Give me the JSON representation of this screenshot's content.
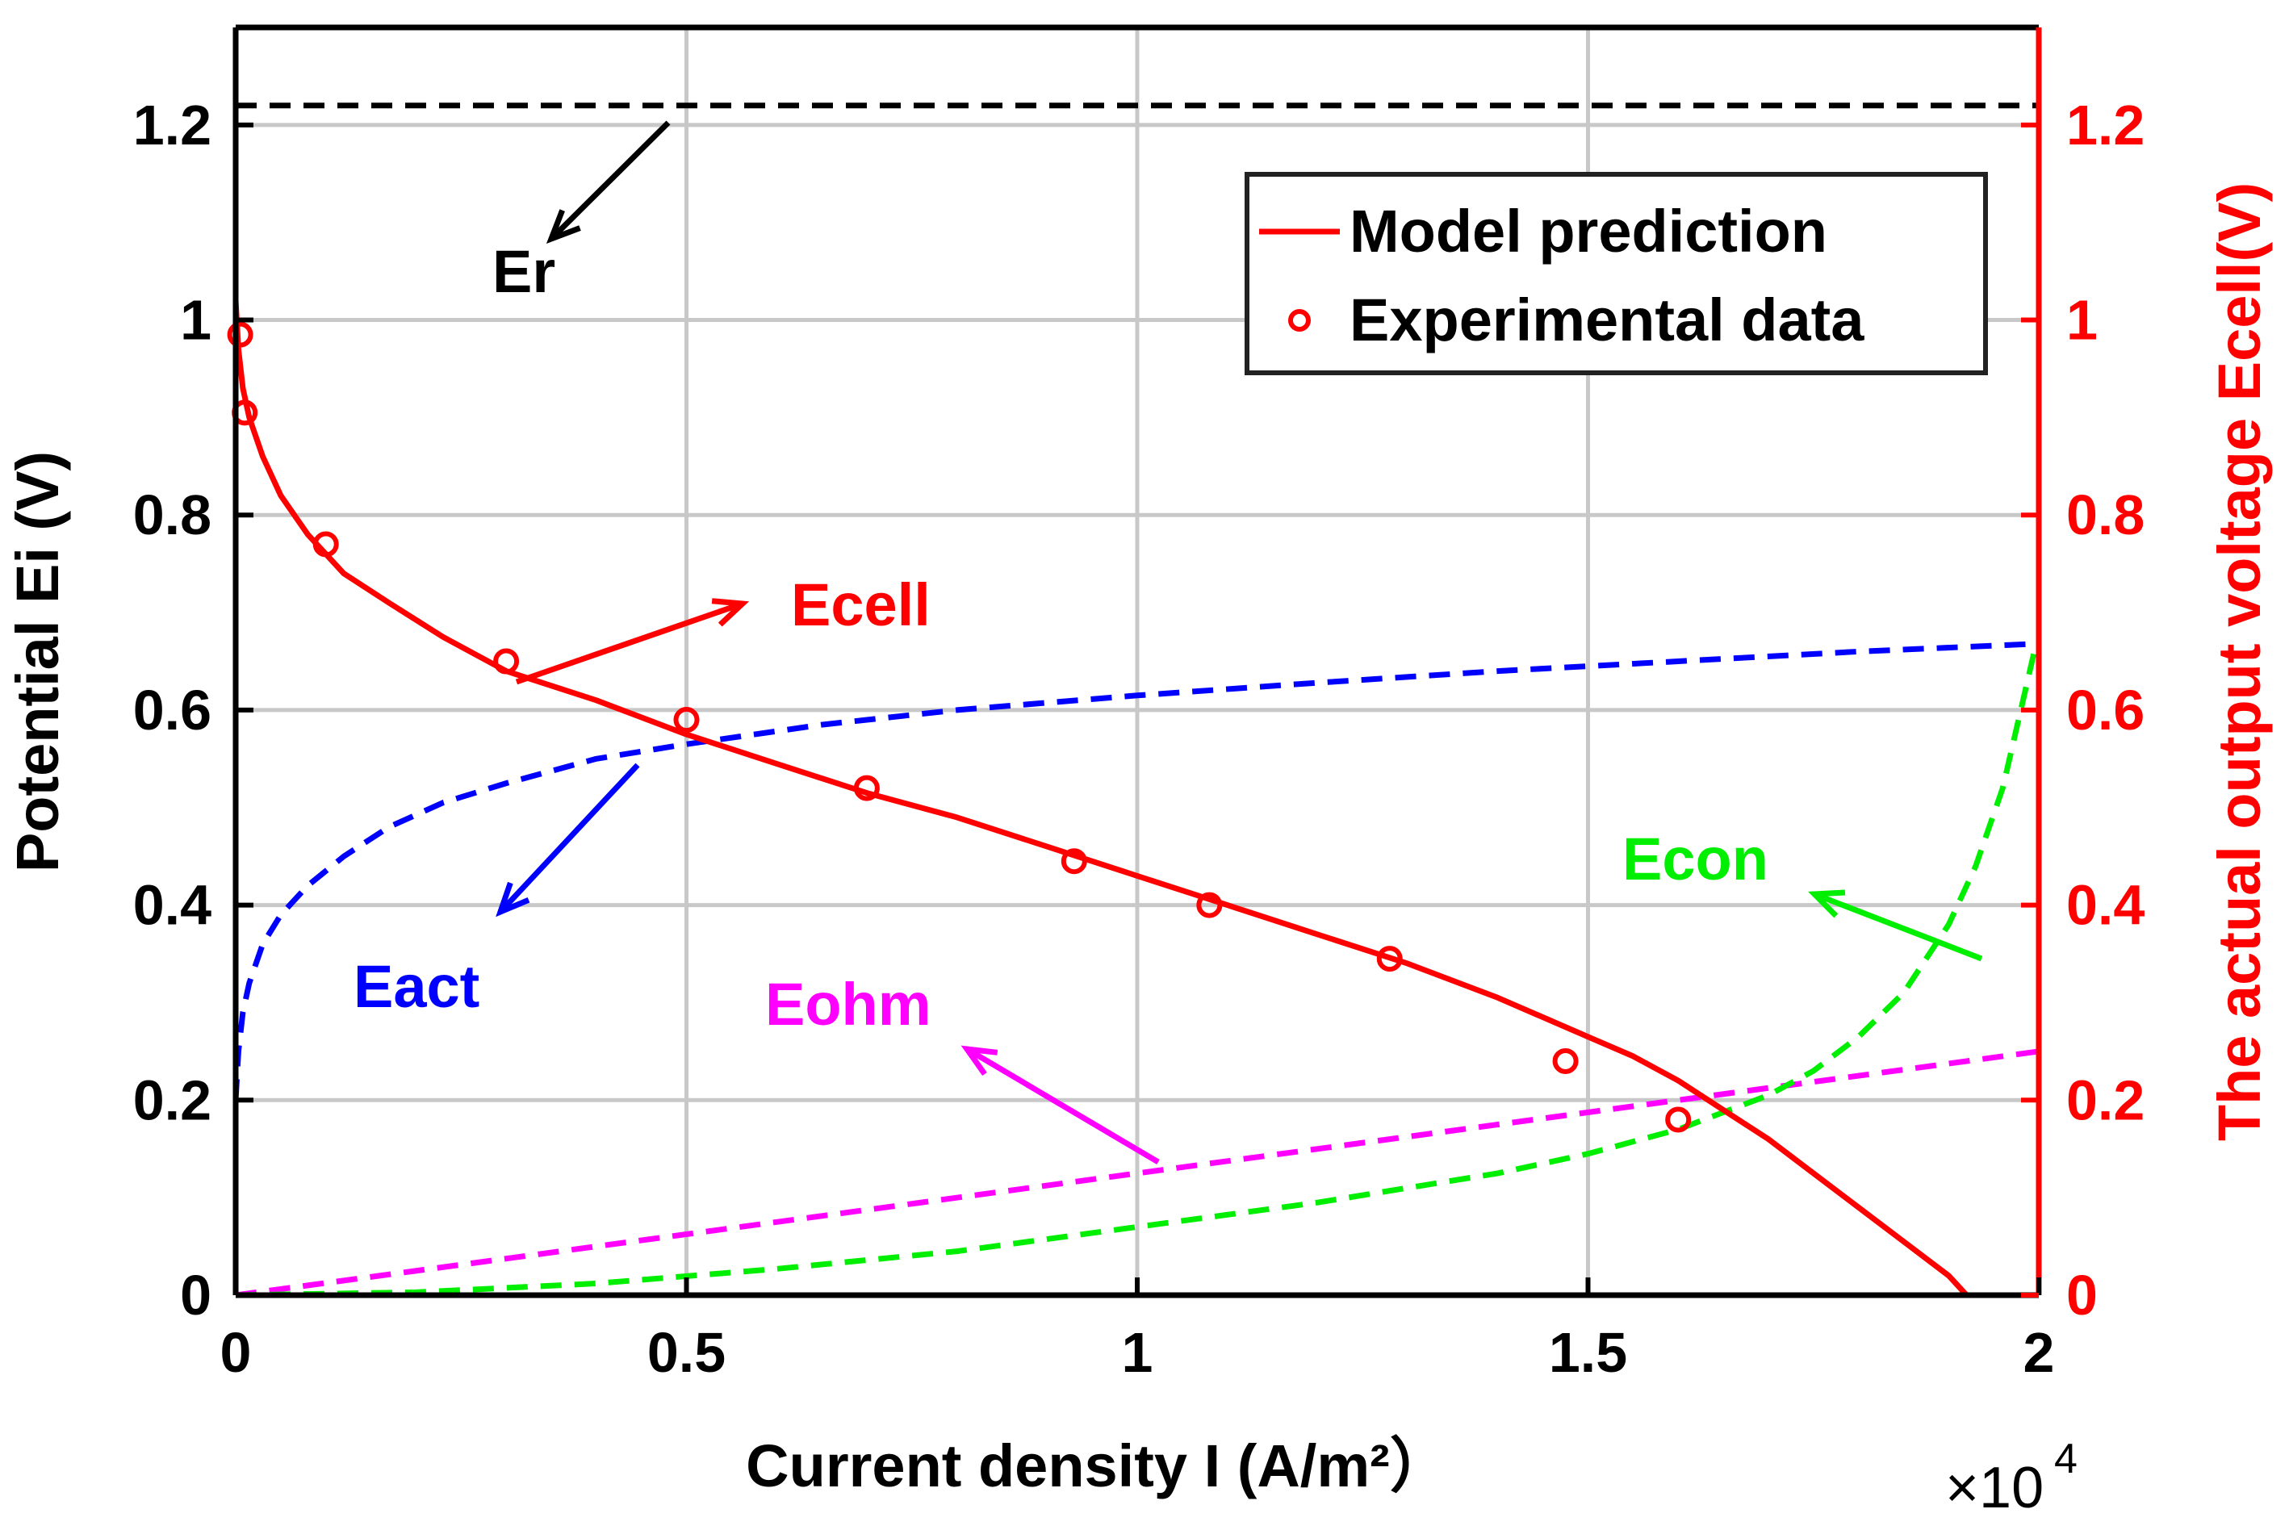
{
  "chart_data": {
    "type": "line",
    "title": "",
    "xlabel": "Current density I (A/m²）",
    "ylabel_left": "Potential Ei (V)",
    "ylabel_right": "The actual output voltage Ecell(V)",
    "x_multiplier": "×10",
    "x_multiplier_exp": "4",
    "xlim": [
      0,
      20000
    ],
    "ylim": [
      0,
      1.3
    ],
    "grid": true,
    "x_ticks": [
      0,
      5000,
      10000,
      15000,
      20000
    ],
    "x_tick_labels": [
      "0",
      "0.5",
      "1",
      "1.5",
      "2"
    ],
    "y_ticks": [
      0,
      0.2,
      0.4,
      0.6,
      0.8,
      1.0,
      1.2
    ],
    "y_tick_labels": [
      "0",
      "0.2",
      "0.4",
      "0.6",
      "0.8",
      "1",
      "1.2"
    ],
    "legend": {
      "position": "top-right",
      "entries": [
        "Model prediction",
        "Experimental data"
      ]
    },
    "series": [
      {
        "name": "Er",
        "style": "dashed",
        "color": "#000000",
        "x": [
          0,
          20000
        ],
        "y": [
          1.22,
          1.22
        ]
      },
      {
        "name": "Eact",
        "style": "dashed",
        "color": "#0000ff",
        "x": [
          0,
          30,
          80,
          150,
          300,
          500,
          800,
          1200,
          1700,
          2300,
          3000,
          4000,
          5000,
          6500,
          8000,
          10000,
          12000,
          14000,
          16000,
          18000,
          20000
        ],
        "y": [
          0.2,
          0.25,
          0.29,
          0.32,
          0.36,
          0.39,
          0.42,
          0.45,
          0.48,
          0.505,
          0.525,
          0.55,
          0.565,
          0.585,
          0.6,
          0.615,
          0.628,
          0.64,
          0.65,
          0.66,
          0.668
        ]
      },
      {
        "name": "Eohm",
        "style": "dashed",
        "color": "#ff00ff",
        "x": [
          0,
          20000
        ],
        "y": [
          0,
          0.25
        ]
      },
      {
        "name": "Econ",
        "style": "dashed",
        "color": "#00ee00",
        "x": [
          0,
          2000,
          4000,
          6000,
          8000,
          10000,
          12000,
          14000,
          15000,
          16000,
          17000,
          17500,
          18000,
          18500,
          19000,
          19300,
          19600,
          19800,
          19950
        ],
        "y": [
          0,
          0.003,
          0.012,
          0.027,
          0.045,
          0.07,
          0.095,
          0.125,
          0.145,
          0.17,
          0.205,
          0.23,
          0.265,
          0.31,
          0.38,
          0.44,
          0.52,
          0.6,
          0.66
        ]
      },
      {
        "name": "Model prediction",
        "style": "solid",
        "color": "#ff0000",
        "x": [
          0,
          30,
          80,
          150,
          300,
          500,
          800,
          1200,
          1700,
          2300,
          3000,
          4000,
          5000,
          6000,
          7000,
          8000,
          9000,
          10000,
          11000,
          12000,
          13000,
          14000,
          15000,
          15500,
          16000,
          16500,
          17000,
          17500,
          18000,
          18500,
          19000,
          19200
        ],
        "y": [
          1.02,
          0.97,
          0.93,
          0.9,
          0.86,
          0.82,
          0.78,
          0.74,
          0.71,
          0.675,
          0.64,
          0.61,
          0.575,
          0.545,
          0.515,
          0.49,
          0.46,
          0.43,
          0.4,
          0.37,
          0.34,
          0.305,
          0.265,
          0.245,
          0.22,
          0.19,
          0.16,
          0.125,
          0.09,
          0.055,
          0.02,
          0.0
        ]
      },
      {
        "name": "Experimental data",
        "style": "markers",
        "color": "#ff0000",
        "x": [
          50,
          100,
          1000,
          3000,
          5000,
          7000,
          9300,
          10800,
          12800,
          14750,
          16000
        ],
        "y": [
          0.985,
          0.905,
          0.77,
          0.65,
          0.59,
          0.52,
          0.445,
          0.4,
          0.345,
          0.24,
          0.18
        ]
      }
    ],
    "annotations": [
      {
        "text": "Er",
        "color": "#000000"
      },
      {
        "text": "Ecell",
        "color": "#ff0000"
      },
      {
        "text": "Eact",
        "color": "#0000ff"
      },
      {
        "text": "Eohm",
        "color": "#ff00ff"
      },
      {
        "text": "Econ",
        "color": "#00ee00"
      }
    ]
  }
}
